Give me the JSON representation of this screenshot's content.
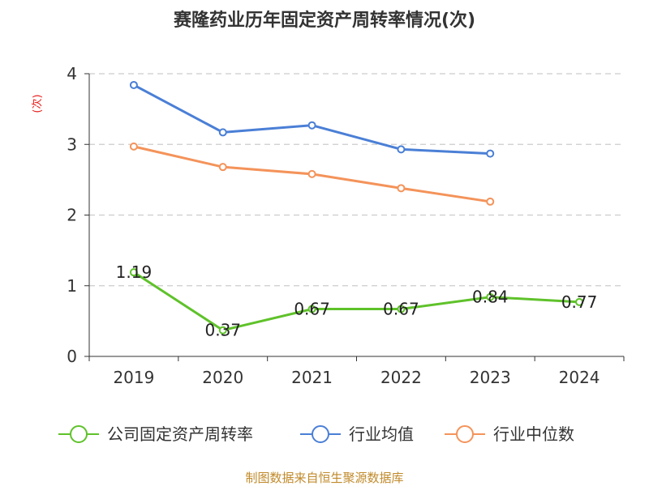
{
  "chart_data": {
    "type": "line",
    "title": "赛隆药业历年固定资产周转率情况(次)",
    "ylabel": "(次)",
    "xlabel": "",
    "categories": [
      "2019",
      "2020",
      "2021",
      "2022",
      "2023",
      "2024"
    ],
    "ylim": [
      0,
      4
    ],
    "yticks": [
      "0",
      "1",
      "2",
      "3",
      "4"
    ],
    "grid": true,
    "legend_position": "bottom",
    "series": [
      {
        "name": "公司固定资产周转率",
        "color": "#5fc22a",
        "values": [
          1.19,
          0.37,
          0.67,
          0.67,
          0.84,
          0.77
        ],
        "labels": [
          "1.19",
          "0.37",
          "0.67",
          "0.67",
          "0.84",
          "0.77"
        ]
      },
      {
        "name": "行业均值",
        "color": "#4a7fd6",
        "values": [
          3.84,
          3.17,
          3.27,
          2.93,
          2.87,
          null
        ]
      },
      {
        "name": "行业中位数",
        "color": "#f4935a",
        "values": [
          2.97,
          2.68,
          2.58,
          2.38,
          2.19,
          null
        ]
      }
    ]
  },
  "source": "制图数据来自恒生聚源数据库"
}
